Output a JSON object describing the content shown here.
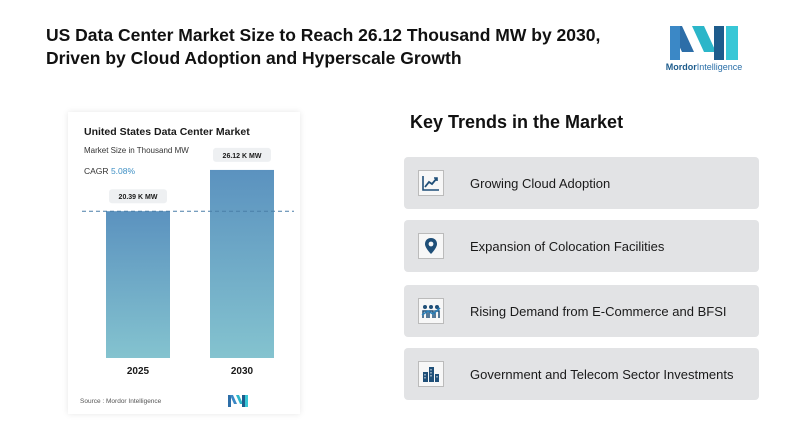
{
  "headline": "US Data Center Market Size to Reach 26.12 Thousand MW by 2030, Driven by Cloud Adoption and Hyperscale Growth",
  "brand": {
    "name_bold": "Mordor",
    "name_rest": "Intelligence"
  },
  "card": {
    "source": "Source : Mordor Intelligence"
  },
  "chart_data": {
    "type": "bar",
    "title": "United States Data Center Market",
    "subtitle": "Market Size in Thousand MW",
    "cagr_label": "CAGR",
    "cagr_value": "5.08%",
    "categories": [
      "2025",
      "2030"
    ],
    "values": [
      20.39,
      26.12
    ],
    "data_labels": [
      "20.39 K MW",
      "26.12 K MW"
    ],
    "ylim": [
      0,
      30
    ],
    "reference_line_value": 20.39,
    "bar_colors": {
      "top": "#5b92bf",
      "bottom": "#84c3cf"
    }
  },
  "trends": {
    "title": "Key Trends in the Market",
    "items": [
      {
        "icon": "line-chart-icon",
        "label": "Growing Cloud Adoption"
      },
      {
        "icon": "map-pin-icon",
        "label": "Expansion of Colocation Facilities"
      },
      {
        "icon": "people-growth-icon",
        "label": "Rising Demand from E-Commerce and BFSI"
      },
      {
        "icon": "buildings-icon",
        "label": "Government and Telecom Sector Investments"
      }
    ]
  }
}
